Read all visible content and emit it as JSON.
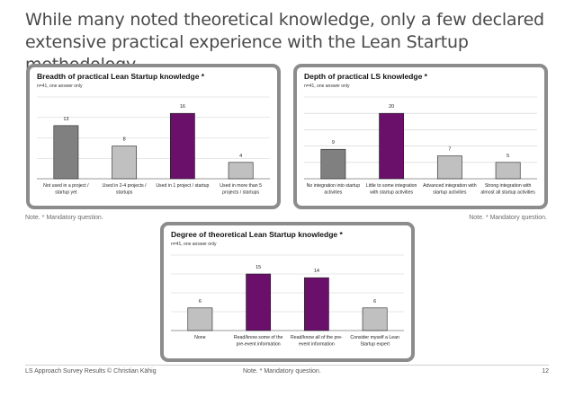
{
  "headline": {
    "line1": "While many noted theoretical knowledge, only a few declared",
    "line2": "extensive practical experience with the Lean Startup methodology"
  },
  "notes": {
    "left": "Note. * Mandatory question.",
    "right": "Note. * Mandatory question.",
    "bottom": "Note. * Mandatory question."
  },
  "footer": {
    "source": "LS Approach Survey Results © Christian Kähig",
    "page": "12"
  },
  "colors": {
    "gray_bar": "#808080",
    "light_bar": "#c0c0c0",
    "purple_bar": "#6a0f6a"
  },
  "chart_data": [
    {
      "type": "bar",
      "title": "Breadth of practical Lean Startup knowledge *",
      "subtitle": "n=41, one answer only",
      "categories": [
        [
          "Not used in a project /",
          "startup yet"
        ],
        [
          "Used in 2-4 projects /",
          "startups"
        ],
        [
          "Used in 1 project / startup"
        ],
        [
          "Used in more than 5",
          "projects / startups"
        ]
      ],
      "values": [
        13,
        8,
        16,
        4
      ],
      "colors": [
        "#808080",
        "#c0c0c0",
        "#6a0f6a",
        "#c0c0c0"
      ],
      "ylim": [
        0,
        20
      ],
      "grid": true
    },
    {
      "type": "bar",
      "title": "Depth of practical LS knowledge *",
      "subtitle": "n=41, one answer only",
      "categories": [
        [
          "No integration into startup",
          "activities"
        ],
        [
          "Little to some integration",
          "with startup activities"
        ],
        [
          "Advanced integration with",
          "startup activities"
        ],
        [
          "Strong integration with",
          "almost all startup activities"
        ]
      ],
      "values": [
        9,
        20,
        7,
        5
      ],
      "colors": [
        "#808080",
        "#6a0f6a",
        "#c0c0c0",
        "#c0c0c0"
      ],
      "ylim": [
        0,
        25
      ],
      "grid": true
    },
    {
      "type": "bar",
      "title": "Degree of theoretical Lean Startup knowledge *",
      "subtitle": "n=41, one answer only",
      "categories": [
        [
          "None"
        ],
        [
          "Read/know some of the",
          "pre-event information"
        ],
        [
          "Read/know all of the pre-",
          "event information"
        ],
        [
          "Consider myself a Lean",
          "Startup expert"
        ]
      ],
      "values": [
        6,
        15,
        14,
        6
      ],
      "colors": [
        "#c0c0c0",
        "#6a0f6a",
        "#6a0f6a",
        "#c0c0c0"
      ],
      "ylim": [
        0,
        20
      ],
      "grid": true
    }
  ]
}
